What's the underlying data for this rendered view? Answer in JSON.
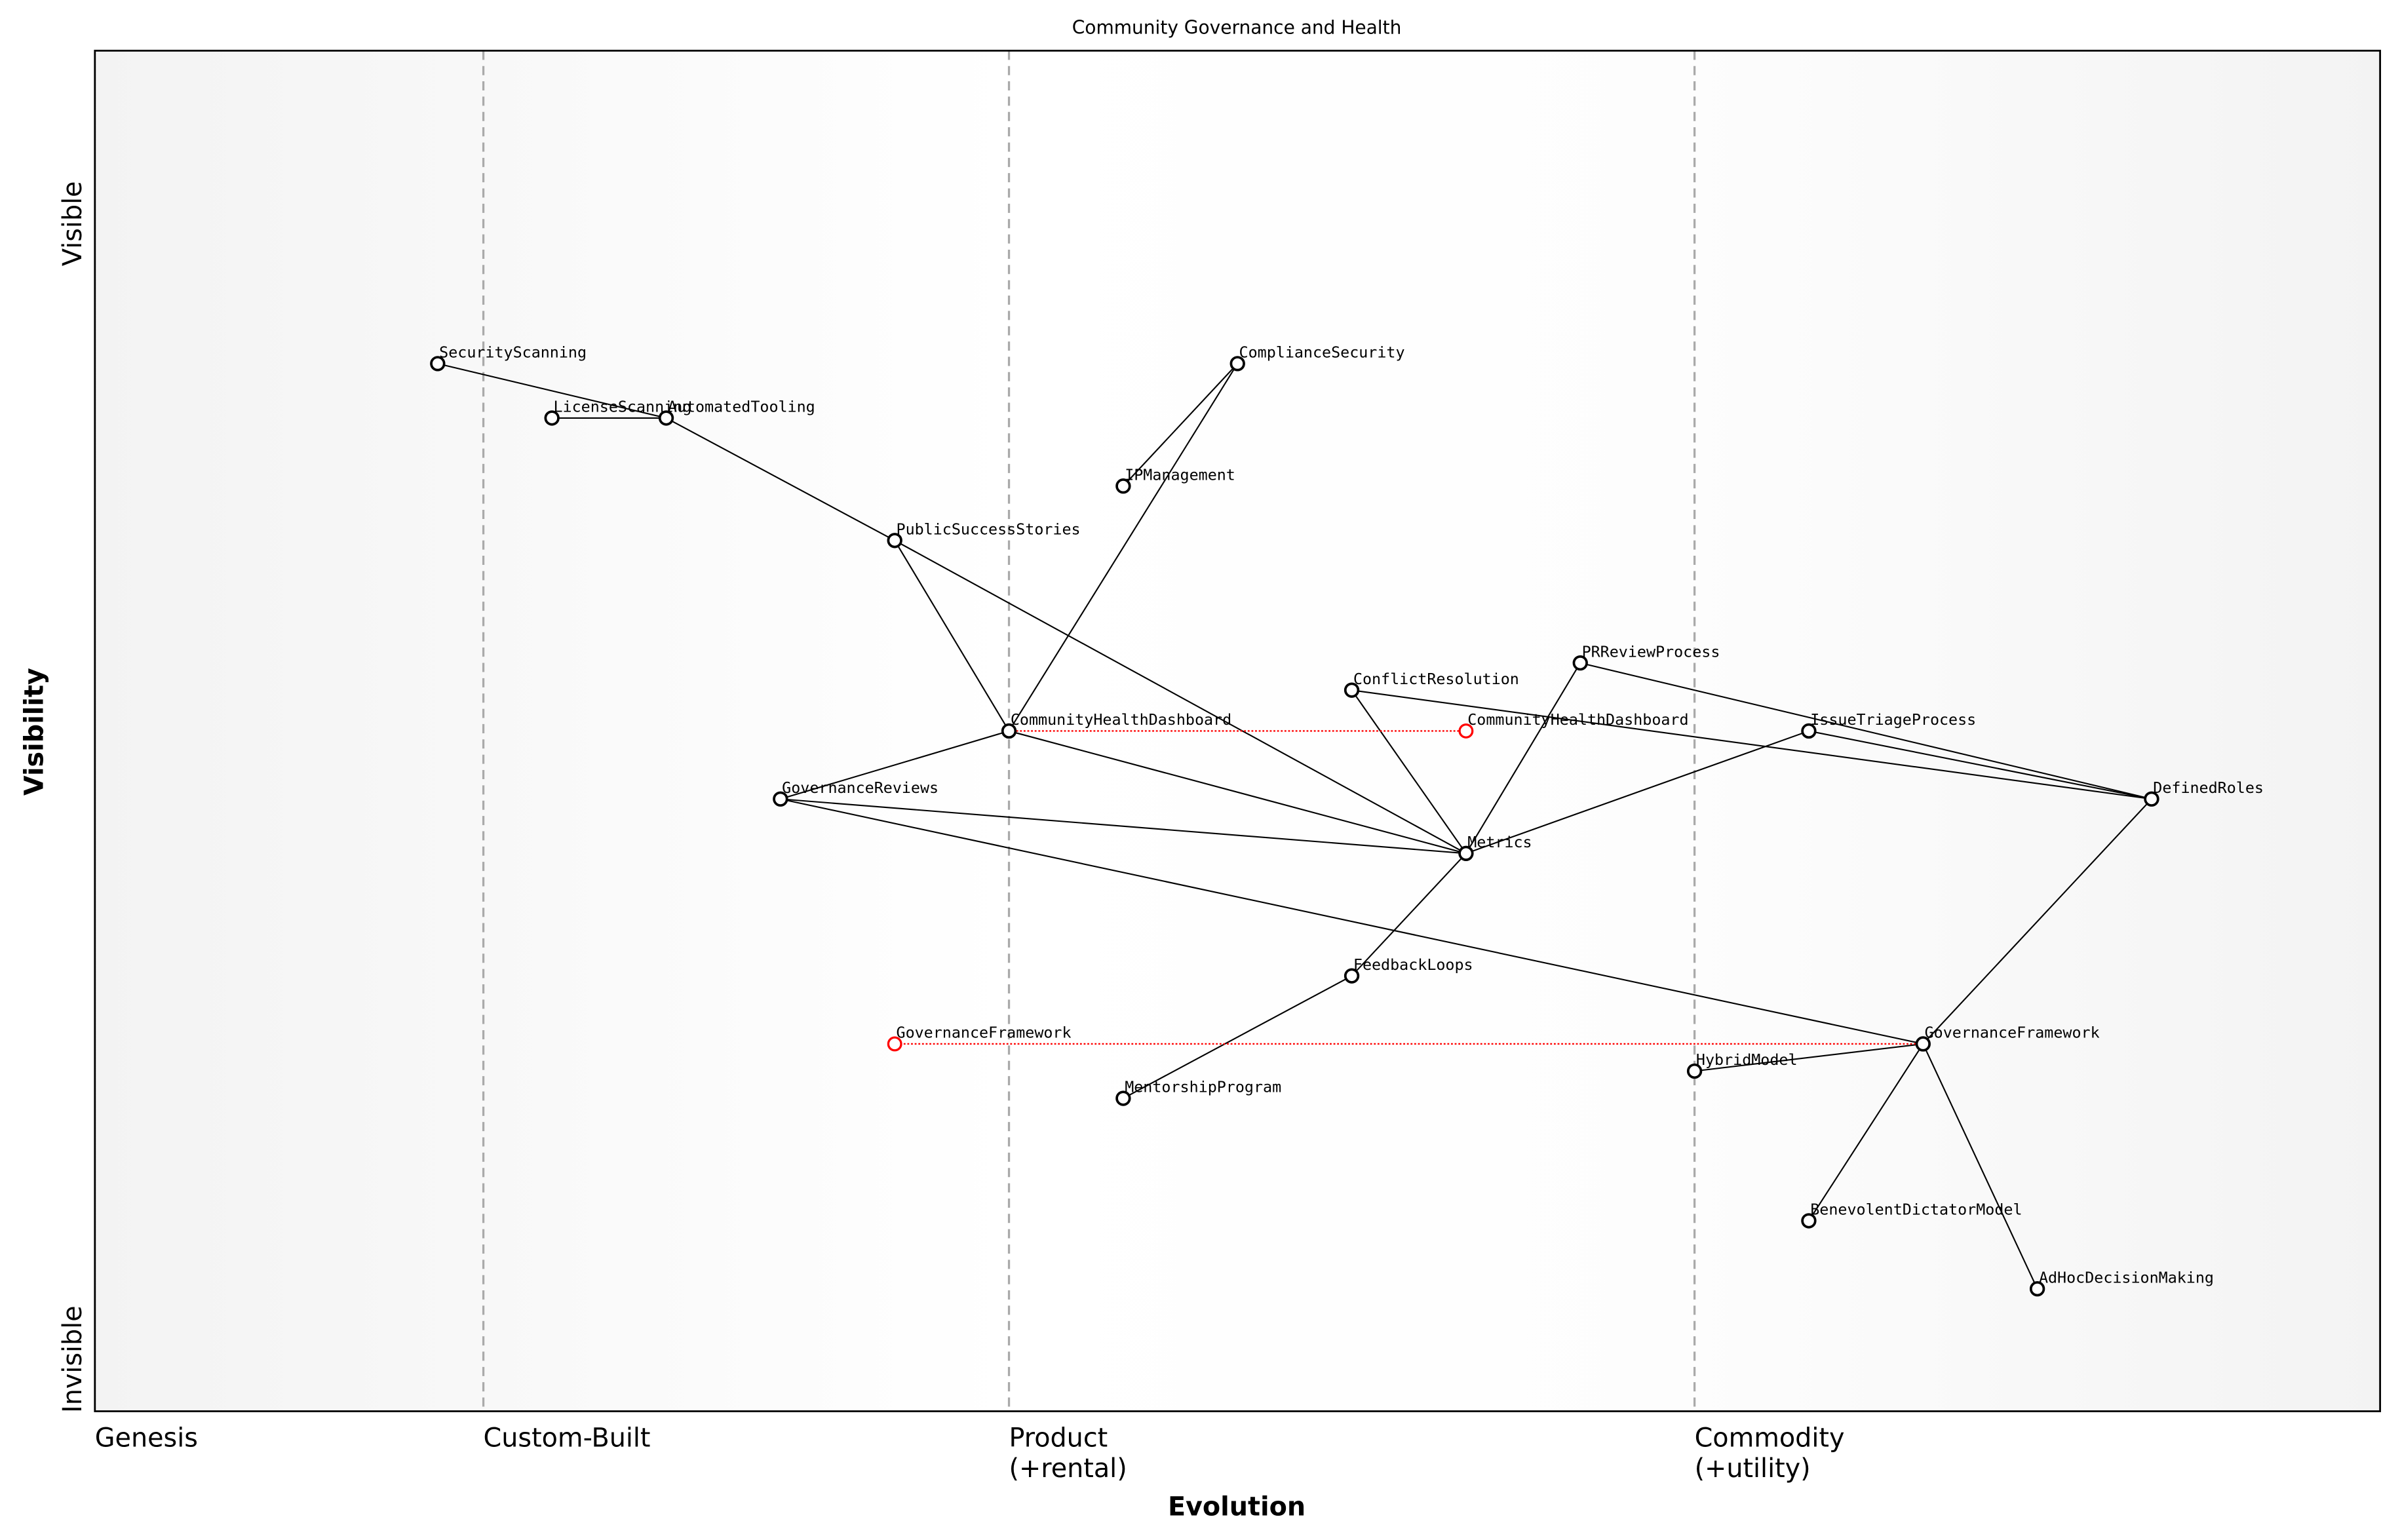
{
  "chart_data": {
    "type": "wardley-map",
    "title": "Community Governance and Health",
    "xlabel": "Evolution",
    "ylabel": "Visibility",
    "y_top_label": "Visible",
    "y_bottom_label": "Invisible",
    "xlim": [
      0,
      1
    ],
    "ylim": [
      0,
      1
    ],
    "stages": [
      {
        "label": "Genesis",
        "x": 0.0
      },
      {
        "label": "Custom-Built",
        "x": 0.17
      },
      {
        "label": "Product\n(+rental)",
        "x": 0.4
      },
      {
        "label": "Commodity\n(+utility)",
        "x": 0.7
      }
    ],
    "stage_lines": [
      0.17,
      0.4,
      0.7
    ],
    "components": [
      {
        "name": "SecurityScanning",
        "evolution": 0.15,
        "visibility": 0.77
      },
      {
        "name": "LicenseScanning",
        "evolution": 0.2,
        "visibility": 0.73
      },
      {
        "name": "AutomatedTooling",
        "evolution": 0.25,
        "visibility": 0.73
      },
      {
        "name": "ComplianceSecurity",
        "evolution": 0.5,
        "visibility": 0.77
      },
      {
        "name": "IPManagement",
        "evolution": 0.45,
        "visibility": 0.68
      },
      {
        "name": "PublicSuccessStories",
        "evolution": 0.35,
        "visibility": 0.64
      },
      {
        "name": "CommunityHealthDashboard",
        "evolution": 0.4,
        "visibility": 0.5
      },
      {
        "name": "ConflictResolution",
        "evolution": 0.55,
        "visibility": 0.53
      },
      {
        "name": "PRReviewProcess",
        "evolution": 0.65,
        "visibility": 0.55
      },
      {
        "name": "IssueTriageProcess",
        "evolution": 0.75,
        "visibility": 0.5
      },
      {
        "name": "DefinedRoles",
        "evolution": 0.9,
        "visibility": 0.45
      },
      {
        "name": "GovernanceReviews",
        "evolution": 0.3,
        "visibility": 0.45
      },
      {
        "name": "Metrics",
        "evolution": 0.6,
        "visibility": 0.41
      },
      {
        "name": "FeedbackLoops",
        "evolution": 0.55,
        "visibility": 0.32
      },
      {
        "name": "GovernanceFramework",
        "evolution": 0.8,
        "visibility": 0.27
      },
      {
        "name": "HybridModel",
        "evolution": 0.7,
        "visibility": 0.25
      },
      {
        "name": "MentorshipProgram",
        "evolution": 0.45,
        "visibility": 0.23
      },
      {
        "name": "BenevolentDictatorModel",
        "evolution": 0.75,
        "visibility": 0.14
      },
      {
        "name": "AdHocDecisionMaking",
        "evolution": 0.85,
        "visibility": 0.09
      }
    ],
    "evolve_targets": [
      {
        "name": "CommunityHealthDashboard",
        "from": 0.4,
        "evolution": 0.6,
        "visibility": 0.5
      },
      {
        "name": "GovernanceFramework",
        "from": 0.8,
        "evolution": 0.35,
        "visibility": 0.27
      }
    ],
    "links": [
      [
        "SecurityScanning",
        "AutomatedTooling"
      ],
      [
        "LicenseScanning",
        "AutomatedTooling"
      ],
      [
        "AutomatedTooling",
        "PublicSuccessStories"
      ],
      [
        "PublicSuccessStories",
        "CommunityHealthDashboard"
      ],
      [
        "PublicSuccessStories",
        "Metrics"
      ],
      [
        "ComplianceSecurity",
        "IPManagement"
      ],
      [
        "ComplianceSecurity",
        "CommunityHealthDashboard"
      ],
      [
        "CommunityHealthDashboard",
        "GovernanceReviews"
      ],
      [
        "CommunityHealthDashboard",
        "Metrics"
      ],
      [
        "GovernanceReviews",
        "Metrics"
      ],
      [
        "GovernanceReviews",
        "GovernanceFramework"
      ],
      [
        "ConflictResolution",
        "Metrics"
      ],
      [
        "ConflictResolution",
        "DefinedRoles"
      ],
      [
        "PRReviewProcess",
        "Metrics"
      ],
      [
        "PRReviewProcess",
        "DefinedRoles"
      ],
      [
        "IssueTriageProcess",
        "DefinedRoles"
      ],
      [
        "IssueTriageProcess",
        "Metrics"
      ],
      [
        "Metrics",
        "FeedbackLoops"
      ],
      [
        "FeedbackLoops",
        "MentorshipProgram"
      ],
      [
        "DefinedRoles",
        "GovernanceFramework"
      ],
      [
        "GovernanceFramework",
        "HybridModel"
      ],
      [
        "GovernanceFramework",
        "BenevolentDictatorModel"
      ],
      [
        "GovernanceFramework",
        "AdHocDecisionMaking"
      ]
    ],
    "colors": {
      "component": "#000000",
      "evolve": "#ff0000",
      "stage_line": "#aaaaaa"
    }
  }
}
